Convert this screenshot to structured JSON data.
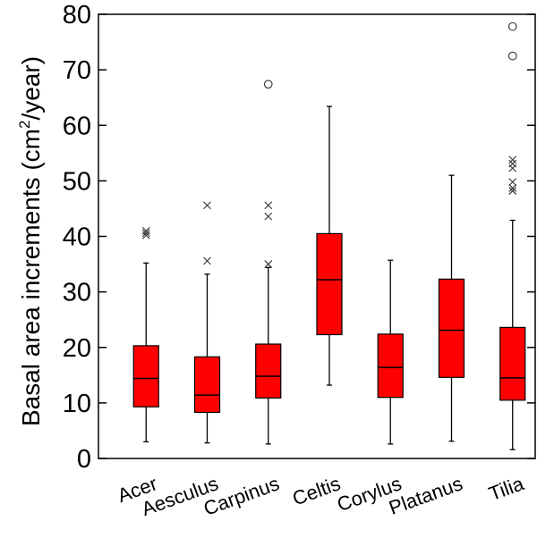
{
  "chart_data": {
    "type": "box",
    "ylabel_main": "Basal area increments (cm",
    "ylabel_sup": "2",
    "ylabel_tail": "/year)",
    "ylim": [
      0,
      80
    ],
    "yticks": [
      0,
      10,
      20,
      30,
      40,
      50,
      60,
      70,
      80
    ],
    "categories": [
      "Acer",
      "Aesculus",
      "Carpinus",
      "Celtis",
      "Corylus",
      "Platanus",
      "Tilia"
    ],
    "box_color": "#ff0000",
    "boxes": [
      {
        "name": "Acer",
        "min": 3.0,
        "q1": 9.3,
        "median": 14.4,
        "q3": 20.3,
        "max": 35.2,
        "extremes": [],
        "outliers": [
          40.2,
          40.6,
          41.0
        ]
      },
      {
        "name": "Aesculus",
        "min": 2.8,
        "q1": 8.3,
        "median": 11.4,
        "q3": 18.3,
        "max": 33.2,
        "extremes": [],
        "outliers": [
          35.6,
          45.6
        ]
      },
      {
        "name": "Carpinus",
        "min": 2.6,
        "q1": 10.9,
        "median": 14.8,
        "q3": 20.6,
        "max": 34.4,
        "extremes": [
          67.4
        ],
        "outliers": [
          35.0,
          43.6,
          45.6
        ]
      },
      {
        "name": "Celtis",
        "min": 13.2,
        "q1": 22.3,
        "median": 32.2,
        "q3": 40.5,
        "max": 63.4,
        "extremes": [],
        "outliers": []
      },
      {
        "name": "Corylus",
        "min": 2.6,
        "q1": 11.0,
        "median": 16.4,
        "q3": 22.4,
        "max": 35.7,
        "extremes": [],
        "outliers": []
      },
      {
        "name": "Platanus",
        "min": 3.1,
        "q1": 14.6,
        "median": 23.1,
        "q3": 32.3,
        "max": 51.0,
        "extremes": [],
        "outliers": []
      },
      {
        "name": "Tilia",
        "min": 1.6,
        "q1": 10.5,
        "median": 14.5,
        "q3": 23.6,
        "max": 42.9,
        "extremes": [
          72.5,
          77.8
        ],
        "outliers": [
          48.2,
          48.7,
          49.8,
          52.3,
          53.1,
          53.8
        ]
      }
    ]
  }
}
